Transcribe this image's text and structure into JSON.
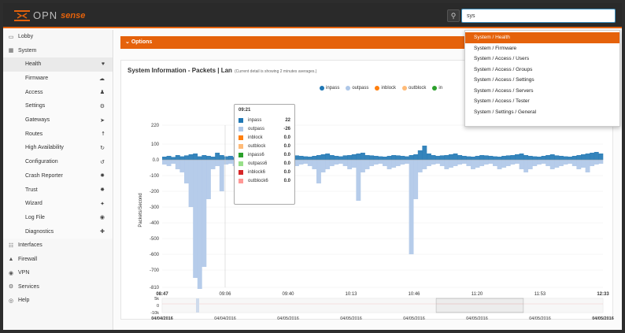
{
  "app": {
    "logo_main": "OPN",
    "logo_sense": "sense"
  },
  "search": {
    "value": "sys",
    "icon": "search-icon"
  },
  "sidebar": {
    "top_items": [
      {
        "label": "Lobby",
        "icon": "laptop-icon"
      },
      {
        "label": "System",
        "icon": "grid-icon"
      }
    ],
    "system_items": [
      {
        "label": "Health",
        "icon": "heartbeat-icon"
      },
      {
        "label": "Firmware",
        "icon": "cloud-icon"
      },
      {
        "label": "Access",
        "icon": "users-icon"
      },
      {
        "label": "Settings",
        "icon": "gears-icon"
      },
      {
        "label": "Gateways",
        "icon": "location-arrow-icon"
      },
      {
        "label": "Routes",
        "icon": "signpost-icon"
      },
      {
        "label": "High Availability",
        "icon": "refresh-icon"
      },
      {
        "label": "Configuration",
        "icon": "history-icon"
      },
      {
        "label": "Crash Reporter",
        "icon": "bug-icon"
      },
      {
        "label": "Trust",
        "icon": "certificate-icon"
      },
      {
        "label": "Wizard",
        "icon": "magic-icon"
      },
      {
        "label": "Log File",
        "icon": "eye-icon"
      },
      {
        "label": "Diagnostics",
        "icon": "medkit-icon"
      }
    ],
    "bottom_items": [
      {
        "label": "Interfaces",
        "icon": "sitemap-icon"
      },
      {
        "label": "Firewall",
        "icon": "fire-icon"
      },
      {
        "label": "VPN",
        "icon": "globe-icon"
      },
      {
        "label": "Services",
        "icon": "cog-icon"
      },
      {
        "label": "Help",
        "icon": "life-ring-icon"
      }
    ]
  },
  "options": {
    "label": "Options"
  },
  "panel": {
    "title": "System Information - Packets | Lan",
    "subtitle": "(Current detail is showing 2 minutes averages.)"
  },
  "dropdown": {
    "items": [
      "System / Health",
      "System / Firmware",
      "System / Access / Users",
      "System / Access / Groups",
      "System / Access / Settings",
      "System / Access / Servers",
      "System / Access / Tester",
      "System / Settings / General"
    ]
  },
  "tooltip": {
    "time": "09:21",
    "rows": [
      {
        "name": "inpass",
        "value": "22",
        "color": "#1f77b4"
      },
      {
        "name": "outpass",
        "value": "-26",
        "color": "#aec7e8"
      },
      {
        "name": "inblock",
        "value": "0.0",
        "color": "#ff7f0e"
      },
      {
        "name": "outblock",
        "value": "0.0",
        "color": "#ffbb78"
      },
      {
        "name": "inpass6",
        "value": "0.0",
        "color": "#2ca02c"
      },
      {
        "name": "outpass6",
        "value": "0.0",
        "color": "#98df8a"
      },
      {
        "name": "inblock6",
        "value": "0.0",
        "color": "#d62728"
      },
      {
        "name": "outblock6",
        "value": "0.0",
        "color": "#ff9896"
      }
    ]
  },
  "colors": {
    "accent": "#e5620b",
    "inpass": "#1f77b4",
    "outpass": "#aec7e8"
  },
  "chart_data": {
    "type": "area",
    "ylabel": "Packets/Second",
    "legend": [
      "inpass",
      "outpass",
      "inblock",
      "outblock",
      "in"
    ],
    "legend_colors": [
      "#1f77b4",
      "#aec7e8",
      "#ff7f0e",
      "#ffbb78",
      "#2ca02c"
    ],
    "ylim": [
      -810,
      220
    ],
    "yticks": [
      220,
      100,
      0,
      -100,
      -200,
      -300,
      -400,
      -500,
      -600,
      -700,
      -810
    ],
    "ytick_labels": [
      "220",
      "100",
      "0.0",
      "-100",
      "-200",
      "-300",
      "-400",
      "-500",
      "-600",
      "-700",
      "-810"
    ],
    "xticks": [
      "08:47",
      "09:06",
      "09:40",
      "10:13",
      "10:46",
      "11:20",
      "11:53",
      "12:33"
    ],
    "series": [
      {
        "name": "inpass",
        "values": [
          20,
          25,
          18,
          30,
          22,
          28,
          35,
          40,
          22,
          30,
          25,
          20,
          45,
          30,
          22,
          25,
          18,
          30,
          28,
          22,
          40,
          35,
          30,
          25,
          20,
          18,
          22,
          25,
          30,
          35,
          28,
          25,
          22,
          20,
          25,
          30,
          35,
          40,
          30,
          25,
          22,
          28,
          30,
          35,
          40,
          45,
          30,
          28,
          25,
          22,
          20,
          25,
          30,
          28,
          25,
          22,
          30,
          35,
          60,
          90,
          40,
          30,
          25,
          28,
          30,
          35,
          40,
          30,
          25,
          22,
          20,
          25,
          30,
          28,
          25,
          22,
          20,
          25,
          28,
          30,
          35,
          40,
          30,
          25,
          22,
          20,
          25,
          30,
          35,
          28,
          25,
          22,
          20,
          25,
          30,
          35,
          40,
          45,
          50,
          40
        ]
      },
      {
        "name": "outpass",
        "values": [
          -30,
          -40,
          -25,
          -60,
          -80,
          -150,
          -300,
          -750,
          -820,
          -680,
          -250,
          -60,
          -40,
          -200,
          -30,
          -25,
          -40,
          -60,
          -50,
          -40,
          -30,
          -60,
          -80,
          -60,
          -40,
          -30,
          -25,
          -40,
          -60,
          -50,
          -40,
          -30,
          -25,
          -40,
          -60,
          -150,
          -80,
          -60,
          -40,
          -30,
          -25,
          -40,
          -60,
          -50,
          -260,
          -80,
          -60,
          -40,
          -30,
          -25,
          -40,
          -60,
          -50,
          -40,
          -30,
          -25,
          -600,
          -250,
          -80,
          -60,
          -40,
          -30,
          -25,
          -40,
          -60,
          -50,
          -40,
          -30,
          -25,
          -40,
          -60,
          -50,
          -40,
          -30,
          -25,
          -40,
          -60,
          -50,
          -40,
          -30,
          -25,
          -60,
          -80,
          -60,
          -40,
          -30,
          -25,
          -40,
          -60,
          -50,
          -40,
          -30,
          -25,
          -40,
          -60,
          -50,
          -80,
          -40,
          -30,
          -25
        ]
      }
    ],
    "overview": {
      "yticks": [
        "5k",
        "0",
        "-10k"
      ],
      "xticks": [
        "04/04/2016",
        "04/04/2016",
        "04/05/2016",
        "04/05/2016",
        "04/05/2016",
        "04/05/2016",
        "04/05/2016",
        "04/05/2016"
      ]
    }
  }
}
